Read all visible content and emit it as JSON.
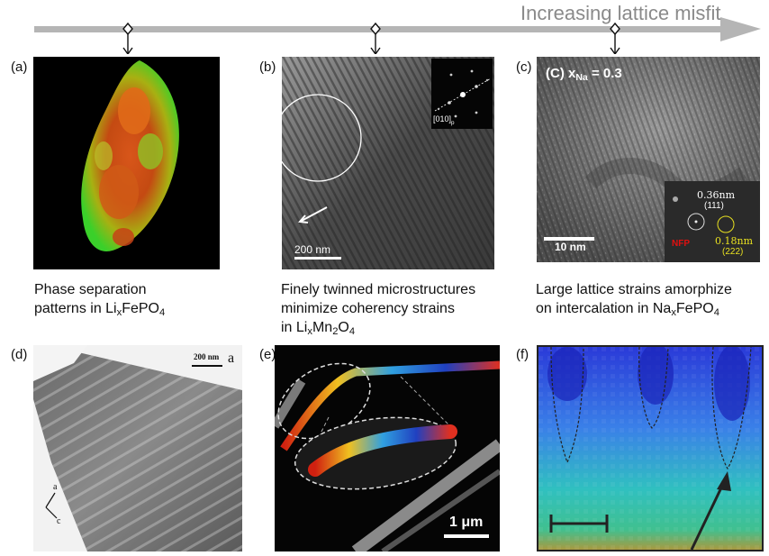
{
  "header": {
    "arrow_label": "Increasing lattice misfit"
  },
  "panels": {
    "a": {
      "label": "(a)",
      "caption_line1": "Phase separation",
      "caption_line2_pre": "patterns in Li",
      "caption_line2_sub1": "x",
      "caption_line2_mid": "FePO",
      "caption_line2_sub2": "4"
    },
    "b": {
      "label": "(b)",
      "scale": "200 nm",
      "inset_label": "[010]",
      "inset_sub": "p",
      "caption_line1": "Finely twinned microstructures",
      "caption_line2": "minimize coherency strains",
      "caption_line3_pre": "in Li",
      "caption_line3_sub1": "x",
      "caption_line3_mid": "Mn",
      "caption_line3_sub2": "2",
      "caption_line3_mid2": "O",
      "caption_line3_sub3": "4"
    },
    "c": {
      "label": "(c)",
      "title_pre": "(C) x",
      "title_sub": "Na",
      "title_post": " = 0.3",
      "scale": "10 nm",
      "inset_d1": "0.36nm",
      "inset_hkl1": "(111)",
      "inset_d2": "0.18nm",
      "inset_hkl2": "(222)",
      "inset_tag": "NFP",
      "caption_line1": "Large lattice strains amorphize",
      "caption_line2_pre": "on intercalation in Na",
      "caption_line2_sub1": "x",
      "caption_line2_mid": "FePO",
      "caption_line2_sub2": "4"
    },
    "d": {
      "label": "(d)",
      "scale": "200 nm",
      "corner": "a",
      "axis_a": "a",
      "axis_c": "c"
    },
    "e": {
      "label": "(e)",
      "scale": "1 μm"
    },
    "f": {
      "label": "(f)"
    }
  },
  "colors": {
    "arrow": "#b5b5b5",
    "arrow_label": "#8a8a8a",
    "yellow_text": "#e8e020",
    "red_text": "#e01010"
  }
}
